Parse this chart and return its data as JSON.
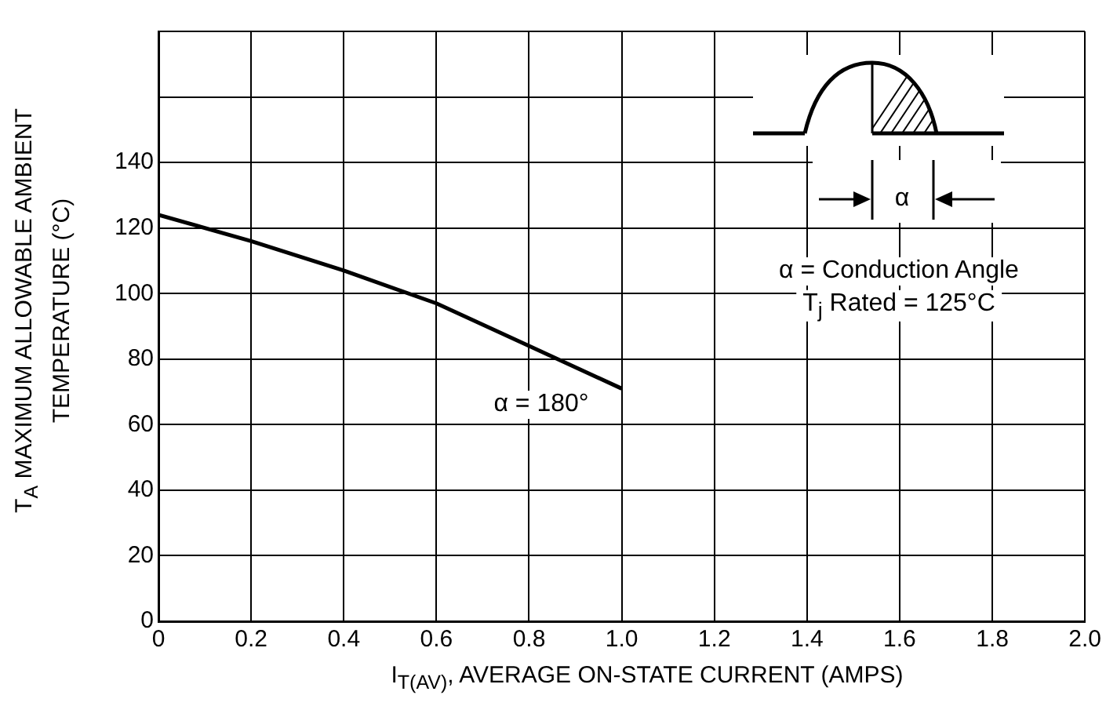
{
  "chart_data": {
    "type": "line",
    "xlabel": "I$_{T(AV)}$, AVERAGE ON-STATE CURRENT (AMPS)",
    "ylabel": "T$_{A}$ MAXIMUM ALLOWABLE AMBIENT TEMPERATURE (°C)",
    "x": [
      0,
      0.2,
      0.4,
      0.6,
      0.8,
      1.0
    ],
    "series": [
      {
        "color": "#000000",
        "values": [
          124,
          116,
          107,
          97,
          84,
          71
        ]
      }
    ],
    "xlim": [
      0,
      2.0
    ],
    "xticks": [
      0,
      0.2,
      0.4,
      0.6,
      0.8,
      {
        "value": 1.0,
        "label": "1.0"
      },
      1.2,
      1.4,
      1.6,
      1.8,
      {
        "value": 2.0,
        "label": "2.0"
      }
    ],
    "ylim": [
      0,
      180
    ],
    "yticks": [
      0,
      20,
      40,
      60,
      80,
      100,
      120,
      140,
      {
        "value": 160,
        "label": null
      },
      {
        "value": 180,
        "label": null
      }
    ],
    "grid": true,
    "legend": false,
    "marker": "none",
    "line_style": "solid",
    "annotations": [
      "α = 180°",
      "α",
      "α = Conduction Angle",
      "T$_{j}$ Rated = 125°C"
    ]
  }
}
